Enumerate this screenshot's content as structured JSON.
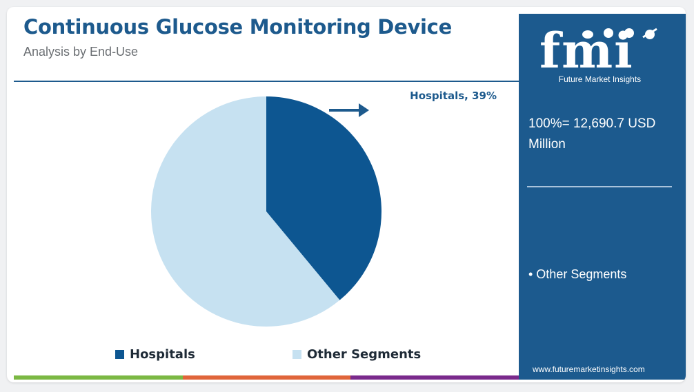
{
  "header": {
    "title": "Continuous Glucose Monitoring Device",
    "subtitle": "Analysis by End-Use"
  },
  "chart_data": {
    "type": "pie",
    "title": "Continuous Glucose Monitoring Device",
    "subtitle": "Analysis by End-Use",
    "slices": [
      {
        "name": "Hospitals",
        "value": 39,
        "color": "#0d5691"
      },
      {
        "name": "Other Segments",
        "value": 61,
        "color": "#c6e1f1"
      }
    ],
    "annotations": [
      "Hospitals, 39%"
    ],
    "legend": {
      "position": "bottom",
      "items": [
        {
          "label": "Hospitals",
          "color": "#0d5691"
        },
        {
          "label": "Other Segments",
          "color": "#c6e1f1"
        }
      ]
    }
  },
  "side_panel": {
    "logo_text": "fmi",
    "logo_tagline": "Future Market Insights",
    "total": "100%= 12,690.7 USD Million",
    "items": [
      "• Other Segments"
    ],
    "website": "www.futuremarketinsights.com",
    "background_color": "#1c5a8e"
  },
  "bottom_bar_colors": [
    "#7bb843",
    "#e0653a",
    "#7a2a8c"
  ]
}
